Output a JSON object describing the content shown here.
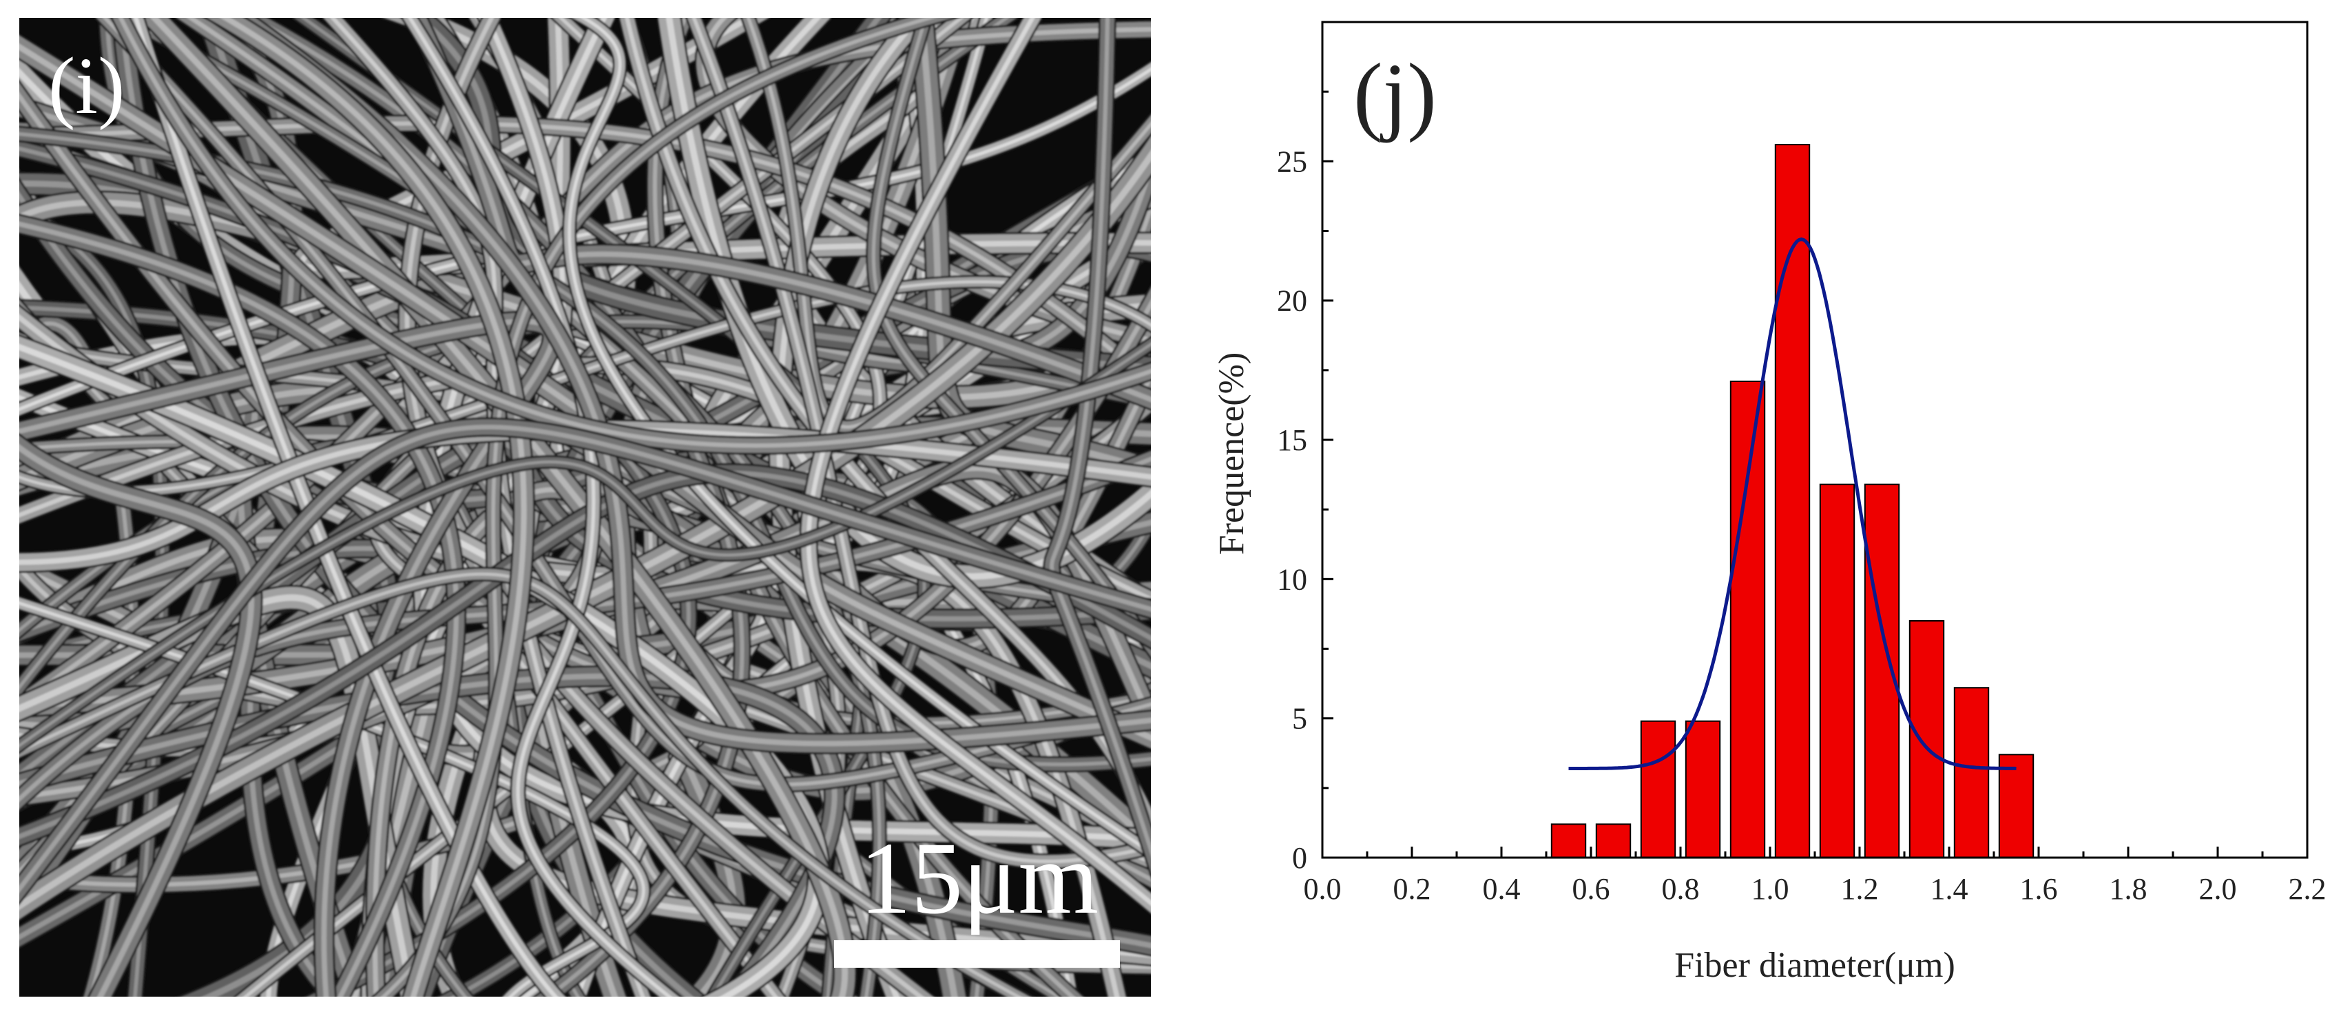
{
  "panel_i": {
    "label": "(i)",
    "scale_bar_text": "15μm",
    "colors": {
      "background": "#0b0b0b",
      "fiber": "#9a9a9a",
      "scale": "#ffffff"
    }
  },
  "chart_data": {
    "type": "bar",
    "panel_label": "(j)",
    "title": "",
    "xlabel": "Fiber diameter(μm)",
    "ylabel": "Frequence(%)",
    "xlim": [
      0.0,
      2.2
    ],
    "ylim": [
      0,
      30
    ],
    "x_ticks": [
      "0.0",
      "0.2",
      "0.4",
      "0.6",
      "0.8",
      "1.0",
      "1.2",
      "1.4",
      "1.6",
      "1.8",
      "2.0",
      "2.2"
    ],
    "y_ticks": [
      "0",
      "5",
      "10",
      "15",
      "20",
      "25"
    ],
    "bin_width": 0.1,
    "bins": [
      {
        "center": 0.55,
        "value": 1.2
      },
      {
        "center": 0.65,
        "value": 1.2
      },
      {
        "center": 0.75,
        "value": 4.9
      },
      {
        "center": 0.85,
        "value": 4.9
      },
      {
        "center": 0.95,
        "value": 17.1
      },
      {
        "center": 1.05,
        "value": 25.6
      },
      {
        "center": 1.15,
        "value": 13.4
      },
      {
        "center": 1.25,
        "value": 13.4
      },
      {
        "center": 1.35,
        "value": 8.5
      },
      {
        "center": 1.45,
        "value": 6.1
      },
      {
        "center": 1.55,
        "value": 3.7
      }
    ],
    "fit_curve": {
      "type": "gaussian",
      "baseline": 3.2,
      "amplitude": 19.0,
      "center": 1.07,
      "sigma": 0.11,
      "x_range": [
        0.55,
        1.55
      ]
    },
    "grid": false,
    "legend": "none",
    "colors": {
      "bar_fill": "#ee0000",
      "bar_stroke": "#000000",
      "fit": "#0c1a8c",
      "axis": "#000000"
    }
  }
}
